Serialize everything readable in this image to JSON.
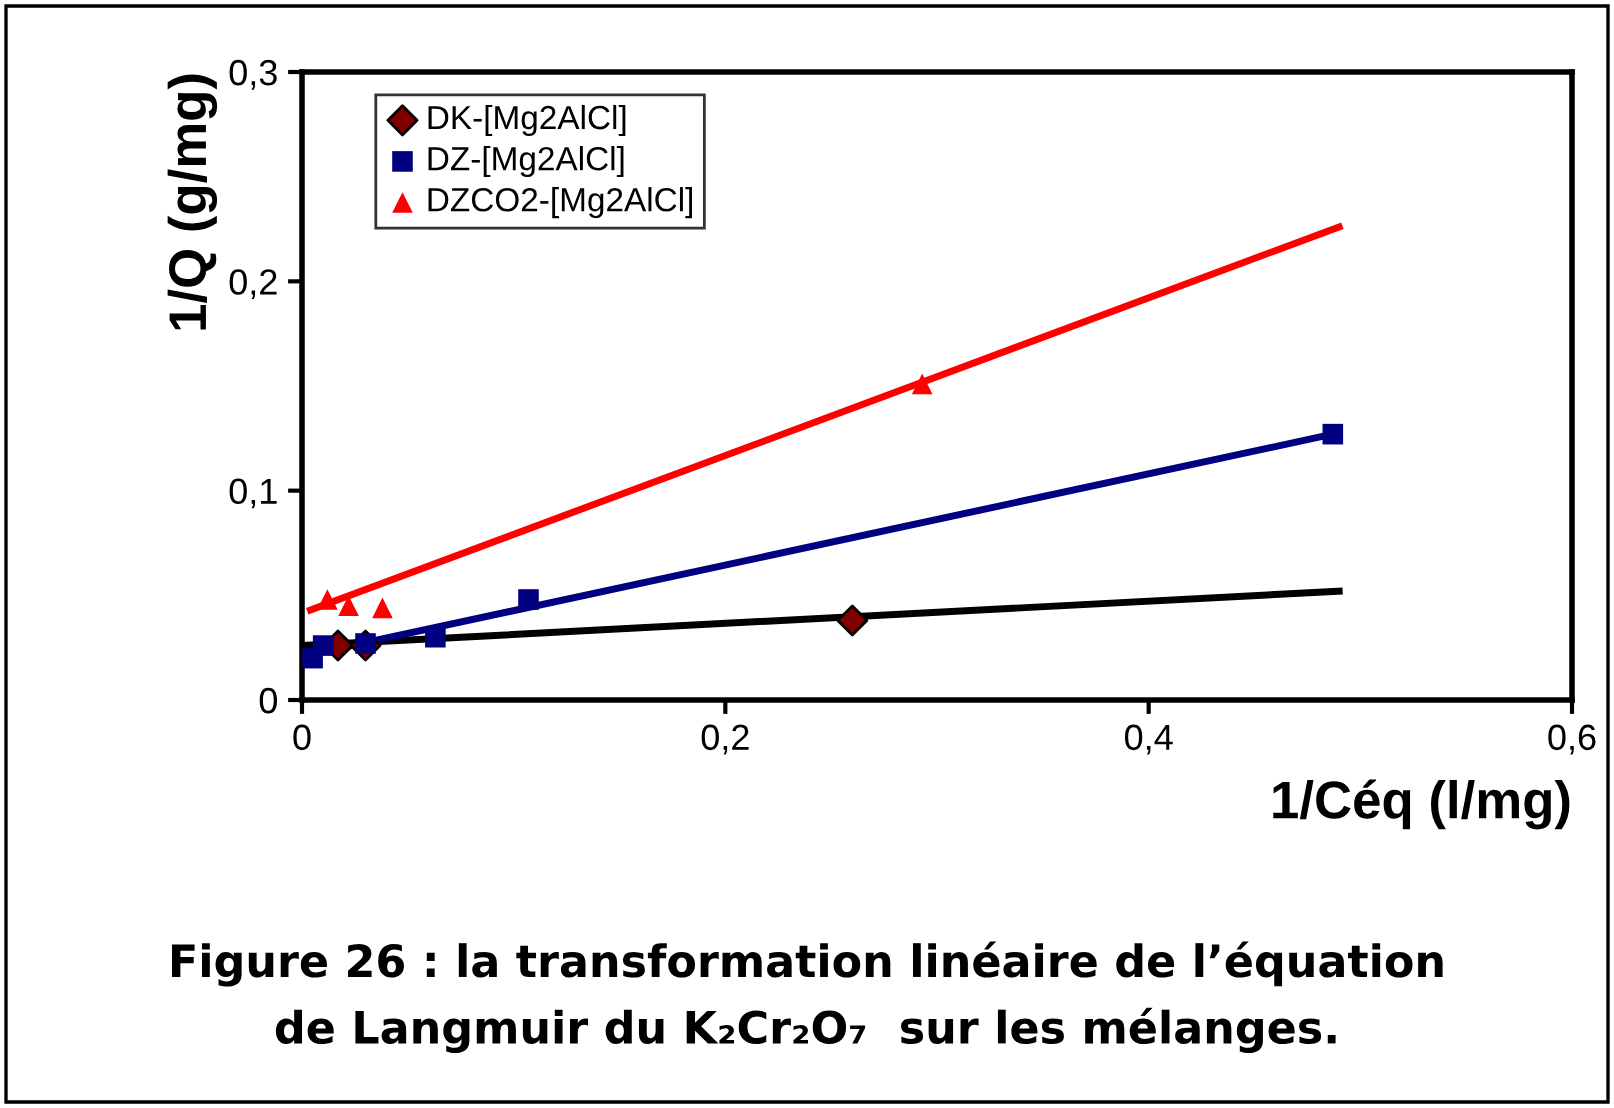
{
  "chart_data": {
    "type": "scatter",
    "xlabel": "1/Céq (l/mg)",
    "ylabel": "1/Q (g/mg)",
    "xlim": [
      0,
      0.6
    ],
    "ylim": [
      0,
      0.3
    ],
    "xticks": [
      0,
      {
        "value": 0.2,
        "label": "0,2"
      },
      {
        "value": 0.4,
        "label": "0,4"
      },
      {
        "value": 0.6,
        "label": "0,6"
      }
    ],
    "yticks": [
      0,
      {
        "value": 0.1,
        "label": "0,1"
      },
      {
        "value": 0.2,
        "label": "0,2"
      },
      {
        "value": 0.3,
        "label": "0,3"
      }
    ],
    "grid": false,
    "legend": "top left",
    "series": [
      {
        "type": "line",
        "color": "#000000",
        "x": [
          0.0,
          0.49
        ],
        "values": [
          0.026,
          0.052
        ],
        "marker": "none"
      },
      {
        "type": "line",
        "color": "#000080",
        "x": [
          0.005,
          0.487
        ],
        "values": [
          0.022,
          0.127
        ],
        "marker": "none"
      },
      {
        "type": "line",
        "color": "#ff0000",
        "x": [
          0.004,
          0.49
        ],
        "values": [
          0.043,
          0.226
        ],
        "marker": "none"
      },
      {
        "name": "DK-[Mg2AlCl]",
        "color": "#800000",
        "x": [
          0.017,
          0.03,
          0.26
        ],
        "values": [
          0.026,
          0.026,
          0.038
        ],
        "marker": "diamond"
      },
      {
        "name": "DZ-[Mg2AlCl]",
        "color": "#000080",
        "x": [
          0.005,
          0.01,
          0.03,
          0.063,
          0.107,
          0.487
        ],
        "values": [
          0.02,
          0.026,
          0.027,
          0.03,
          0.048,
          0.127
        ],
        "marker": "square"
      },
      {
        "name": "DZCO2-[Mg2AlCl]",
        "color": "#ff0000",
        "x": [
          0.012,
          0.022,
          0.038,
          0.293
        ],
        "values": [
          0.048,
          0.045,
          0.044,
          0.151
        ],
        "marker": "triangle"
      }
    ],
    "annotations": [
      "Figure 26 : la transformation linéaire de l’équation\nde Langmuir du K₂Cr₂O₇  sur les mélanges."
    ]
  }
}
